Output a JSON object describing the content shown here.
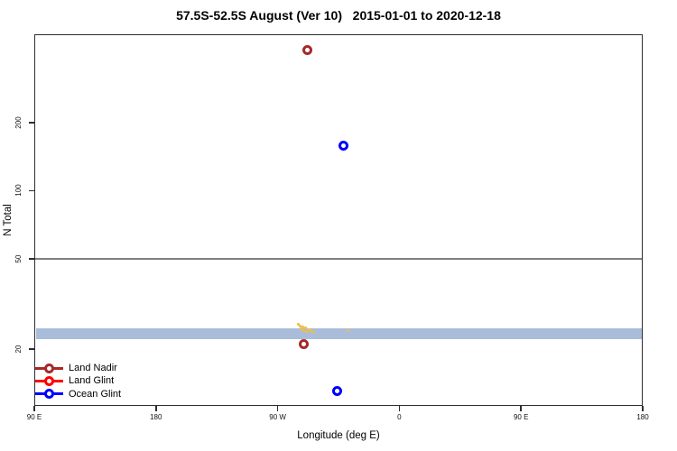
{
  "chart_data": {
    "type": "scatter",
    "title": "57.5S-52.5S August (Ver 10)   2015-01-01 to 2020-12-18",
    "xlabel": "Longitude (deg E)",
    "ylabel": "N Total",
    "x_axis": {
      "note": "longitude axis wraps: 90E eastward through 180 to 90W, 0, 90E, 180",
      "range_unwrapped_deg": [
        90,
        540
      ],
      "ticks": [
        {
          "deg": 90,
          "label": "90 E"
        },
        {
          "deg": 180,
          "label": "180"
        },
        {
          "deg": 270,
          "label": "90 W"
        },
        {
          "deg": 360,
          "label": "0"
        },
        {
          "deg": 450,
          "label": "90 E"
        },
        {
          "deg": 540,
          "label": "180"
        }
      ]
    },
    "y_axis": {
      "scale": "log",
      "range": [
        11.2,
        491
      ],
      "ticks": [
        20,
        50,
        100,
        200
      ]
    },
    "reference_line": {
      "value": 50,
      "color": "#7f7f7f"
    },
    "band": {
      "from": 22,
      "to": 24.6,
      "color": "#A9BDDB"
    },
    "series": [
      {
        "name": "Land Nadir",
        "color": "#A52A2A",
        "marker": "open-circle",
        "points": [
          {
            "lon": -68,
            "n": 420
          },
          {
            "lon": -71,
            "n": 21
          }
        ]
      },
      {
        "name": "Land Glint",
        "color": "#FF0000",
        "marker": "open-circle",
        "points": []
      },
      {
        "name": "Ocean Glint",
        "color": "#0000FF",
        "marker": "open-circle",
        "points": [
          {
            "lon": -41,
            "n": 158
          },
          {
            "lon": -46,
            "n": 13
          }
        ]
      }
    ],
    "unlabeled_marks": {
      "color": "#EDBE4C",
      "points": [
        {
          "lon": -75.0,
          "n": 25.8
        },
        {
          "lon": -73.5,
          "n": 25.2
        },
        {
          "lon": -72.5,
          "n": 24.6
        },
        {
          "lon": -71.5,
          "n": 25.0
        },
        {
          "lon": -70.5,
          "n": 24.2
        },
        {
          "lon": -69.5,
          "n": 24.8
        },
        {
          "lon": -68.5,
          "n": 23.8
        },
        {
          "lon": -67.0,
          "n": 24.4
        },
        {
          "lon": -65.5,
          "n": 24.0
        },
        {
          "lon": -63.5,
          "n": 23.6
        },
        {
          "lon": -37.7,
          "n": 24.2
        }
      ]
    },
    "legend": {
      "position": "bottom-left",
      "items": [
        {
          "label": "Land Nadir",
          "color": "#A52A2A"
        },
        {
          "label": "Land Glint",
          "color": "#FF0000"
        },
        {
          "label": "Ocean Glint",
          "color": "#0000FF"
        }
      ]
    }
  }
}
